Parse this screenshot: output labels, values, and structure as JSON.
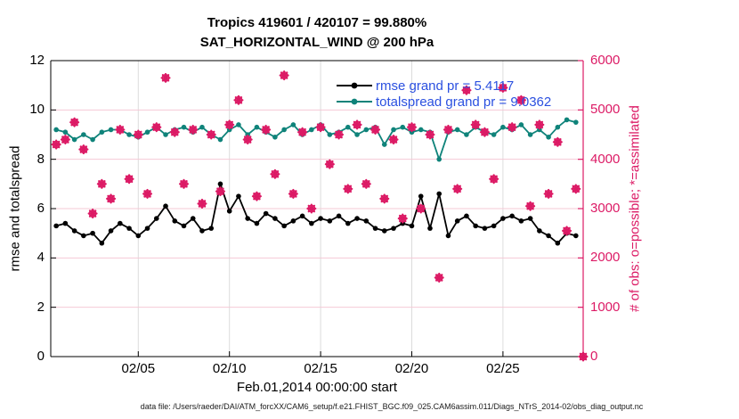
{
  "title": {
    "line1": "Tropics 419601 / 420107 = 99.880%",
    "line2": "SAT_HORIZONTAL_WIND @ 200 hPa"
  },
  "colors": {
    "rmse_line": "#000000",
    "totalspread_line": "#0f837a",
    "obs_pink": "#dc1a65",
    "legend_text": "#2b50e0",
    "grid_horizontal": "#f4c9d6",
    "grid_vertical": "#dcdcdc",
    "axis_black": "#000000"
  },
  "legend": [
    {
      "label": "rmse grand pr = 5.4117",
      "color": "#000000"
    },
    {
      "label": "totalspread grand pr = 9.0362",
      "color": "#0f837a"
    }
  ],
  "axes": {
    "left": {
      "label": "rmse and totalspread",
      "ticks": [
        0,
        2,
        4,
        6,
        8,
        10,
        12
      ],
      "range": [
        0,
        12
      ],
      "color": "#000000"
    },
    "right": {
      "label": "# of obs: o=possible; *=assimilated",
      "ticks": [
        0,
        1000,
        2000,
        3000,
        4000,
        5000,
        6000
      ],
      "range": [
        0,
        6000
      ],
      "color": "#dc1a65"
    },
    "x": {
      "label": "Feb.01,2014 00:00:00 start",
      "range_days": [
        -0.8,
        28.4
      ],
      "ticks": [
        {
          "day": 4,
          "label": "02/05"
        },
        {
          "day": 9,
          "label": "02/10"
        },
        {
          "day": 14,
          "label": "02/15"
        },
        {
          "day": 19,
          "label": "02/20"
        },
        {
          "day": 24,
          "label": "02/25"
        }
      ]
    }
  },
  "footer": {
    "text": "data file: /Users/raeder/DAI/ATM_forcXX/CAM6_setup/f.e21.FHIST_BGC.f09_025.CAM6assim.011/Diags_NTrS_2014-02/obs_diag_output.nc"
  },
  "chart_data": {
    "type": "line",
    "title": "Tropics 419601 / 420107 = 99.880%",
    "subtitle": "SAT_HORIZONTAL_WIND @ 200 hPa",
    "xlabel": "Feb.01,2014 00:00:00 start",
    "ylabel_left": "rmse and totalspread",
    "ylabel_right": "# of obs: o=possible; *=assimilated",
    "x_units": "days since Feb.01,2014 00:00:00",
    "x_range_days": [
      -0.8,
      28.4
    ],
    "ylim_left": [
      0,
      12
    ],
    "ylim_right": [
      0,
      6000
    ],
    "grid": true,
    "legend_position": "top-center-inside",
    "grand_pr": {
      "rmse": 5.4117,
      "totalspread": 9.0362
    },
    "x_days": [
      -0.5,
      0,
      0.5,
      1,
      1.5,
      2,
      2.5,
      3,
      3.5,
      4,
      4.5,
      5,
      5.5,
      6,
      6.5,
      7,
      7.5,
      8,
      8.5,
      9,
      9.5,
      10,
      10.5,
      11,
      11.5,
      12,
      12.5,
      13,
      13.5,
      14,
      14.5,
      15,
      15.5,
      16,
      16.5,
      17,
      17.5,
      18,
      18.5,
      19,
      19.5,
      20,
      20.5,
      21,
      21.5,
      22,
      22.5,
      23,
      23.5,
      24,
      24.5,
      25,
      25.5,
      26,
      26.5,
      27,
      27.5,
      28
    ],
    "obs_x_days": [
      -0.5,
      0,
      0.5,
      1,
      1.5,
      2,
      2.5,
      3,
      3.5,
      4,
      4.5,
      5,
      5.5,
      6,
      6.5,
      7,
      7.5,
      8,
      8.5,
      9,
      9.5,
      10,
      10.5,
      11,
      11.5,
      12,
      12.5,
      13,
      13.5,
      14,
      14.5,
      15,
      15.5,
      16,
      16.5,
      17,
      17.5,
      18,
      18.5,
      19,
      19.5,
      20,
      20.5,
      21,
      21.5,
      22,
      22.5,
      23,
      23.5,
      24,
      24.5,
      25,
      25.5,
      26,
      26.5,
      27,
      27.5,
      28,
      28.4
    ],
    "series": [
      {
        "name": "rmse",
        "axis": "left",
        "style": "line+circle",
        "color": "#000000",
        "values": [
          5.3,
          5.4,
          5.1,
          4.9,
          5.0,
          4.6,
          5.1,
          5.4,
          5.2,
          4.9,
          5.2,
          5.6,
          6.1,
          5.5,
          5.3,
          5.6,
          5.1,
          5.2,
          7.0,
          5.9,
          6.5,
          5.6,
          5.4,
          5.8,
          5.6,
          5.3,
          5.5,
          5.7,
          5.4,
          5.6,
          5.5,
          5.7,
          5.4,
          5.6,
          5.5,
          5.2,
          5.1,
          5.2,
          5.4,
          5.3,
          6.5,
          5.2,
          6.6,
          4.9,
          5.5,
          5.7,
          5.3,
          5.2,
          5.3,
          5.6,
          5.7,
          5.5,
          5.6,
          5.1,
          4.9,
          4.6,
          5.0,
          4.9
        ]
      },
      {
        "name": "totalspread",
        "axis": "left",
        "style": "line+circle",
        "color": "#0f837a",
        "values": [
          9.2,
          9.1,
          8.8,
          9.0,
          8.8,
          9.1,
          9.2,
          9.2,
          9.0,
          8.9,
          9.1,
          9.3,
          9.0,
          9.2,
          9.3,
          9.1,
          9.3,
          9.0,
          8.8,
          9.2,
          9.4,
          9.0,
          9.3,
          9.1,
          8.9,
          9.2,
          9.4,
          9.0,
          9.2,
          9.4,
          9.0,
          9.1,
          9.3,
          9.0,
          9.2,
          9.3,
          8.6,
          9.2,
          9.3,
          9.1,
          9.2,
          9.1,
          8.0,
          9.1,
          9.2,
          9.0,
          9.3,
          9.1,
          9.0,
          9.3,
          9.2,
          9.4,
          9.0,
          9.2,
          8.9,
          9.3,
          9.6,
          9.5
        ]
      },
      {
        "name": "possible_obs",
        "axis": "right",
        "style": "marker-o",
        "color": "#dc1a65",
        "values": [
          4300,
          4400,
          4750,
          4200,
          2900,
          3500,
          3200,
          4600,
          3600,
          4500,
          3300,
          4650,
          5650,
          4550,
          3500,
          4600,
          3100,
          4500,
          3350,
          4700,
          5200,
          4400,
          3250,
          4600,
          3700,
          5700,
          3300,
          4550,
          3000,
          4650,
          3900,
          4500,
          3400,
          4700,
          3500,
          4600,
          3200,
          4400,
          2800,
          4650,
          3000,
          4500,
          1600,
          4600,
          3400,
          5400,
          4700,
          4550,
          3600,
          5450,
          4650,
          5200,
          3050,
          4700,
          3300,
          4350,
          2550,
          3400,
          0
        ]
      },
      {
        "name": "assimilated_obs",
        "axis": "right",
        "style": "marker-asterisk",
        "color": "#dc1a65",
        "values": [
          4300,
          4400,
          4750,
          4200,
          2900,
          3500,
          3200,
          4600,
          3600,
          4500,
          3300,
          4650,
          5650,
          4550,
          3500,
          4600,
          3100,
          4500,
          3350,
          4700,
          5200,
          4400,
          3250,
          4600,
          3700,
          5700,
          3300,
          4550,
          3000,
          4650,
          3900,
          4500,
          3400,
          4700,
          3500,
          4600,
          3200,
          4400,
          2800,
          4650,
          3000,
          4500,
          1600,
          4600,
          3400,
          5400,
          4700,
          4550,
          3600,
          5450,
          4650,
          5200,
          3050,
          4700,
          3300,
          4350,
          2550,
          3400,
          0
        ]
      }
    ]
  }
}
